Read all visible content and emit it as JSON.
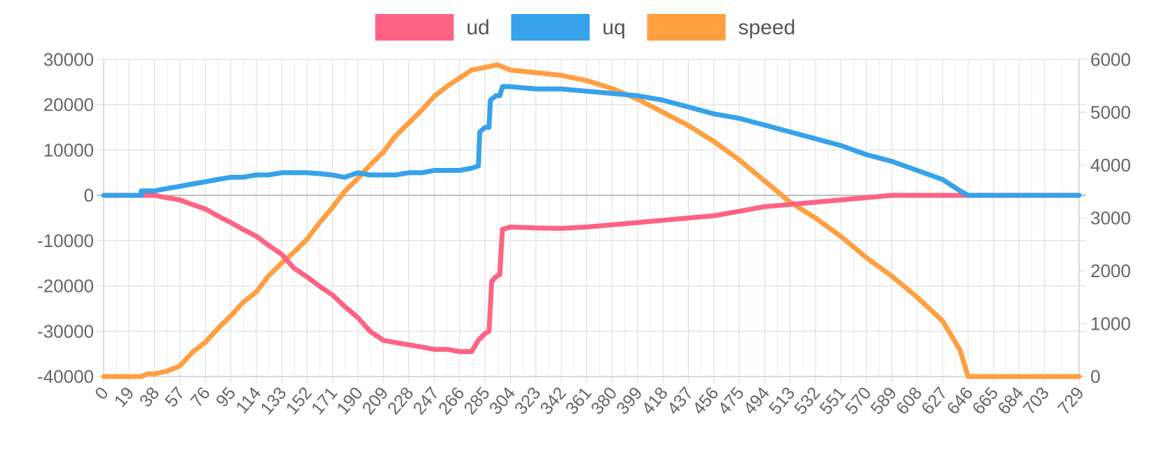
{
  "chart_data": {
    "type": "line",
    "title": "",
    "xlabel": "",
    "ylabel": "",
    "legend_position": "top-center",
    "grid": true,
    "x_ticks": [
      0,
      19,
      38,
      57,
      76,
      95,
      114,
      133,
      152,
      171,
      190,
      209,
      228,
      247,
      266,
      285,
      304,
      323,
      342,
      361,
      380,
      399,
      418,
      437,
      456,
      475,
      494,
      513,
      532,
      551,
      570,
      589,
      608,
      627,
      646,
      665,
      684,
      703,
      729
    ],
    "xlim": [
      0,
      729
    ],
    "y_left": {
      "ticks": [
        30000,
        20000,
        10000,
        0,
        -10000,
        -20000,
        -30000,
        -40000
      ],
      "labels": [
        "30000",
        "20000",
        "10000",
        "0",
        "-10000",
        "-20000",
        "-30000",
        "-40000"
      ],
      "lim": [
        -40000,
        30000
      ]
    },
    "y_right": {
      "ticks": [
        6000,
        5000,
        4000,
        3000,
        2000,
        1000,
        0
      ],
      "labels": [
        "6000",
        "5000",
        "4000",
        "3000",
        "2000",
        "1000",
        "0"
      ],
      "lim": [
        0,
        6000
      ]
    },
    "series": [
      {
        "name": "ud",
        "color": "#ff6384",
        "axis": "left",
        "points": [
          [
            0,
            0
          ],
          [
            19,
            0
          ],
          [
            28,
            0
          ],
          [
            38,
            0
          ],
          [
            47,
            -500
          ],
          [
            57,
            -1000
          ],
          [
            66,
            -2000
          ],
          [
            76,
            -3000
          ],
          [
            85,
            -4500
          ],
          [
            95,
            -6000
          ],
          [
            104,
            -7500
          ],
          [
            114,
            -9000
          ],
          [
            123,
            -11000
          ],
          [
            133,
            -13000
          ],
          [
            142,
            -16000
          ],
          [
            152,
            -18000
          ],
          [
            161,
            -20000
          ],
          [
            171,
            -22000
          ],
          [
            180,
            -24500
          ],
          [
            190,
            -27000
          ],
          [
            199,
            -30000
          ],
          [
            209,
            -32000
          ],
          [
            218,
            -32500
          ],
          [
            228,
            -33000
          ],
          [
            238,
            -33500
          ],
          [
            247,
            -34000
          ],
          [
            257,
            -34000
          ],
          [
            266,
            -34500
          ],
          [
            275,
            -34500
          ],
          [
            280,
            -32000
          ],
          [
            285,
            -30500
          ],
          [
            288,
            -30000
          ],
          [
            290,
            -19000
          ],
          [
            293,
            -18000
          ],
          [
            296,
            -17500
          ],
          [
            298,
            -7500
          ],
          [
            304,
            -7000
          ],
          [
            323,
            -7200
          ],
          [
            342,
            -7300
          ],
          [
            361,
            -7000
          ],
          [
            380,
            -6500
          ],
          [
            399,
            -6000
          ],
          [
            418,
            -5500
          ],
          [
            437,
            -5000
          ],
          [
            456,
            -4500
          ],
          [
            475,
            -3500
          ],
          [
            494,
            -2500
          ],
          [
            513,
            -2000
          ],
          [
            532,
            -1500
          ],
          [
            551,
            -1000
          ],
          [
            570,
            -500
          ],
          [
            589,
            0
          ],
          [
            608,
            0
          ],
          [
            627,
            0
          ],
          [
            646,
            0
          ],
          [
            665,
            0
          ],
          [
            684,
            0
          ],
          [
            703,
            0
          ],
          [
            729,
            0
          ]
        ]
      },
      {
        "name": "uq",
        "color": "#36a2eb",
        "axis": "left",
        "points": [
          [
            0,
            0
          ],
          [
            28,
            0
          ],
          [
            28,
            1000
          ],
          [
            38,
            1000
          ],
          [
            47,
            1500
          ],
          [
            57,
            2000
          ],
          [
            66,
            2500
          ],
          [
            76,
            3000
          ],
          [
            85,
            3500
          ],
          [
            95,
            4000
          ],
          [
            104,
            4000
          ],
          [
            114,
            4500
          ],
          [
            123,
            4500
          ],
          [
            133,
            5000
          ],
          [
            142,
            5000
          ],
          [
            152,
            5000
          ],
          [
            161,
            4800
          ],
          [
            171,
            4500
          ],
          [
            180,
            4000
          ],
          [
            190,
            5000
          ],
          [
            199,
            4500
          ],
          [
            209,
            4500
          ],
          [
            218,
            4500
          ],
          [
            228,
            5000
          ],
          [
            238,
            5000
          ],
          [
            247,
            5500
          ],
          [
            257,
            5500
          ],
          [
            266,
            5500
          ],
          [
            275,
            6000
          ],
          [
            280,
            6500
          ],
          [
            281,
            14000
          ],
          [
            285,
            15000
          ],
          [
            288,
            15000
          ],
          [
            289,
            21000
          ],
          [
            293,
            22000
          ],
          [
            296,
            22000
          ],
          [
            298,
            24000
          ],
          [
            304,
            24000
          ],
          [
            323,
            23500
          ],
          [
            342,
            23500
          ],
          [
            361,
            23000
          ],
          [
            380,
            22500
          ],
          [
            399,
            22000
          ],
          [
            418,
            21000
          ],
          [
            437,
            19500
          ],
          [
            456,
            18000
          ],
          [
            475,
            17000
          ],
          [
            494,
            15500
          ],
          [
            513,
            14000
          ],
          [
            532,
            12500
          ],
          [
            551,
            11000
          ],
          [
            570,
            9000
          ],
          [
            589,
            7500
          ],
          [
            608,
            5500
          ],
          [
            627,
            3500
          ],
          [
            640,
            1000
          ],
          [
            646,
            0
          ],
          [
            665,
            0
          ],
          [
            684,
            0
          ],
          [
            703,
            0
          ],
          [
            729,
            0
          ]
        ]
      },
      {
        "name": "speed",
        "color": "#ff9f40",
        "axis": "right",
        "points": [
          [
            0,
            0
          ],
          [
            19,
            0
          ],
          [
            28,
            0
          ],
          [
            33,
            50
          ],
          [
            38,
            50
          ],
          [
            47,
            100
          ],
          [
            52,
            150
          ],
          [
            57,
            200
          ],
          [
            66,
            450
          ],
          [
            76,
            650
          ],
          [
            85,
            900
          ],
          [
            95,
            1150
          ],
          [
            104,
            1400
          ],
          [
            114,
            1600
          ],
          [
            123,
            1900
          ],
          [
            133,
            2150
          ],
          [
            142,
            2350
          ],
          [
            152,
            2600
          ],
          [
            161,
            2900
          ],
          [
            171,
            3200
          ],
          [
            180,
            3500
          ],
          [
            190,
            3750
          ],
          [
            199,
            4000
          ],
          [
            209,
            4250
          ],
          [
            218,
            4550
          ],
          [
            228,
            4800
          ],
          [
            238,
            5050
          ],
          [
            247,
            5300
          ],
          [
            257,
            5500
          ],
          [
            266,
            5650
          ],
          [
            275,
            5800
          ],
          [
            285,
            5850
          ],
          [
            294,
            5900
          ],
          [
            304,
            5800
          ],
          [
            323,
            5750
          ],
          [
            342,
            5700
          ],
          [
            361,
            5600
          ],
          [
            380,
            5450
          ],
          [
            399,
            5250
          ],
          [
            418,
            5000
          ],
          [
            437,
            4750
          ],
          [
            456,
            4450
          ],
          [
            475,
            4100
          ],
          [
            494,
            3700
          ],
          [
            513,
            3300
          ],
          [
            532,
            3000
          ],
          [
            551,
            2650
          ],
          [
            570,
            2250
          ],
          [
            589,
            1900
          ],
          [
            608,
            1500
          ],
          [
            627,
            1050
          ],
          [
            640,
            500
          ],
          [
            646,
            0
          ],
          [
            665,
            0
          ],
          [
            684,
            0
          ],
          [
            703,
            0
          ],
          [
            729,
            0
          ]
        ]
      }
    ]
  }
}
